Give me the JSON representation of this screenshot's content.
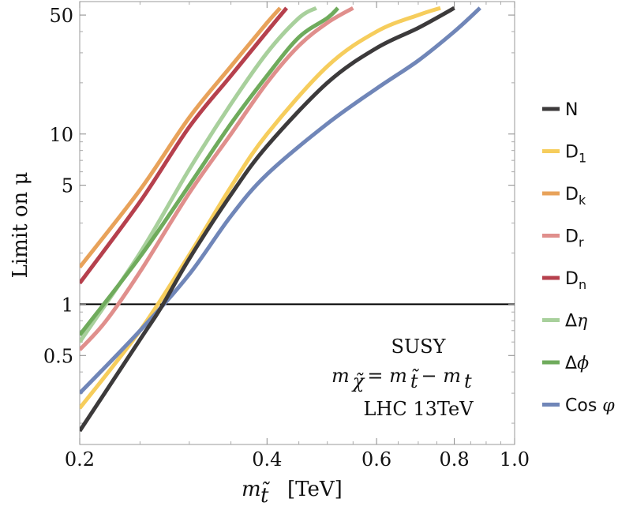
{
  "chart_data": {
    "type": "line",
    "xlabel": "m",
    "xlabel_sub": "t̃",
    "xlabel_unit": "[TeV]",
    "ylabel": "Limit on μ",
    "xscale": "log",
    "yscale": "log",
    "xlim": [
      0.2,
      1.0
    ],
    "ylim": [
      0.15,
      60
    ],
    "xticks": [
      0.2,
      0.4,
      0.6,
      0.8,
      1.0
    ],
    "xtick_labels": [
      "0.2",
      "0.4",
      "0.6",
      "0.8",
      "1.0"
    ],
    "yticks": [
      0.5,
      1,
      5,
      10,
      50
    ],
    "ytick_labels": [
      "0.5",
      "1",
      "5",
      "10",
      "50"
    ],
    "reference_line": {
      "y": 1,
      "color": "#000000"
    },
    "annotation": {
      "line1": "SUSY",
      "line2_lhs": "m",
      "line2_lhs_sub": "χ̃",
      "line2_eq": " = ",
      "line2_m1": "m",
      "line2_m1_sub": "t̃",
      "line2_minus": " − ",
      "line2_m2": "m",
      "line2_m2_sub": "t",
      "line3": "LHC 13TeV"
    },
    "series": [
      {
        "key": "N",
        "label_main": "N",
        "label_sub": "",
        "label_style": "normal",
        "color": "#3c3a3b",
        "x": [
          0.2,
          0.25,
          0.27,
          0.3,
          0.35,
          0.4,
          0.5,
          0.6,
          0.7,
          0.8
        ],
        "y": [
          0.18,
          0.62,
          0.95,
          1.85,
          4.4,
          8.5,
          20,
          32,
          42,
          55
        ]
      },
      {
        "key": "D1",
        "label_main": "D",
        "label_sub": "1",
        "label_style": "normal",
        "color": "#f6cd5c",
        "x": [
          0.2,
          0.25,
          0.3,
          0.35,
          0.4,
          0.5,
          0.6,
          0.7,
          0.76
        ],
        "y": [
          0.245,
          0.7,
          1.95,
          4.9,
          10,
          25,
          40,
          50,
          55
        ]
      },
      {
        "key": "Dk",
        "label_main": "D",
        "label_sub": "k",
        "label_style": "normal",
        "color": "#e8a25a",
        "x": [
          0.2,
          0.25,
          0.3,
          0.35,
          0.4,
          0.42
        ],
        "y": [
          1.65,
          4.7,
          12.5,
          25,
          45,
          55
        ]
      },
      {
        "key": "Dr",
        "label_main": "D",
        "label_sub": "r",
        "label_style": "normal",
        "color": "#e08f8c",
        "x": [
          0.2,
          0.22,
          0.25,
          0.3,
          0.35,
          0.4,
          0.45,
          0.5,
          0.55
        ],
        "y": [
          0.54,
          0.79,
          1.55,
          4.5,
          10,
          20,
          33,
          45,
          55
        ]
      },
      {
        "key": "Dn",
        "label_main": "D",
        "label_sub": "n",
        "label_style": "normal",
        "color": "#b6404d",
        "x": [
          0.2,
          0.25,
          0.3,
          0.35,
          0.4,
          0.43
        ],
        "y": [
          1.33,
          4.0,
          11.0,
          22,
          40,
          55
        ]
      },
      {
        "key": "Deta",
        "label_main": "Δ",
        "label_sub": "",
        "label_greek": "η",
        "label_style": "greek",
        "color": "#a8d09c",
        "x": [
          0.2,
          0.25,
          0.3,
          0.35,
          0.4,
          0.45,
          0.48
        ],
        "y": [
          0.6,
          2.0,
          6.2,
          15,
          30,
          48,
          55
        ]
      },
      {
        "key": "Dphi",
        "label_main": "Δ",
        "label_sub": "",
        "label_greek": "ϕ",
        "label_style": "greek",
        "color": "#6fab5c",
        "x": [
          0.2,
          0.25,
          0.3,
          0.35,
          0.4,
          0.45,
          0.5,
          0.52
        ],
        "y": [
          0.66,
          1.9,
          5.0,
          11.5,
          22,
          37,
          48,
          55
        ]
      },
      {
        "key": "cosphi",
        "label_main": "Cos",
        "label_sub": "",
        "label_greek": "φ",
        "label_style": "greek",
        "color": "#7086b8",
        "x": [
          0.2,
          0.25,
          0.3,
          0.35,
          0.4,
          0.5,
          0.6,
          0.7,
          0.8,
          0.88
        ],
        "y": [
          0.3,
          0.7,
          1.5,
          3.3,
          5.8,
          11.5,
          18.5,
          27,
          40,
          55
        ]
      }
    ]
  }
}
